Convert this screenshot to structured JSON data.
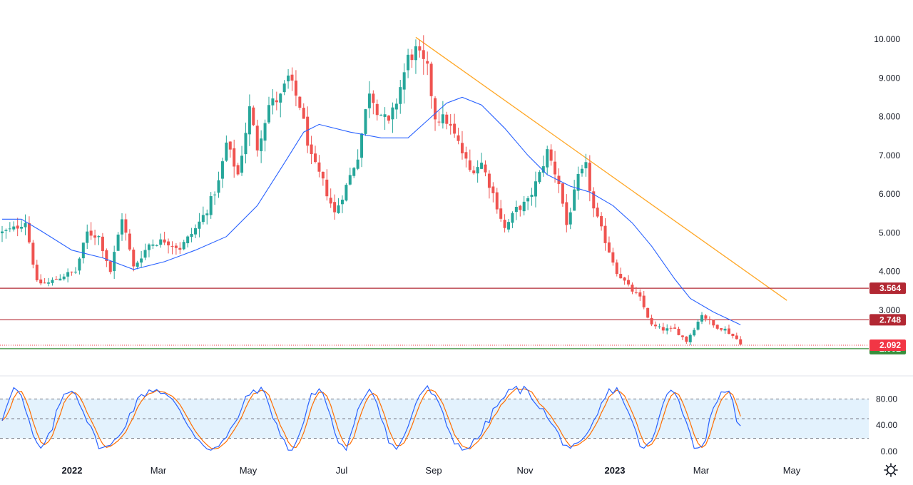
{
  "chart_data": {
    "type": "candlestick",
    "price_axis": {
      "range": [
        2.0,
        10.0
      ],
      "ticks": [
        "2.000",
        "3.000",
        "4.000",
        "5.000",
        "6.000",
        "7.000",
        "8.000",
        "9.000",
        "10.000"
      ]
    },
    "time_axis": {
      "labels": [
        {
          "text": "2022",
          "bold": true
        },
        {
          "text": "Mar",
          "bold": false
        },
        {
          "text": "May",
          "bold": false
        },
        {
          "text": "Jul",
          "bold": false
        },
        {
          "text": "Sep",
          "bold": false
        },
        {
          "text": "Nov",
          "bold": false
        },
        {
          "text": "2023",
          "bold": true
        },
        {
          "text": "Mar",
          "bold": false
        },
        {
          "text": "May",
          "bold": false
        }
      ]
    },
    "price_path": [
      [
        0,
        5.0
      ],
      [
        3,
        5.1
      ],
      [
        6,
        5.3
      ],
      [
        9,
        3.7
      ],
      [
        12,
        3.7
      ],
      [
        16,
        3.9
      ],
      [
        19,
        4.0
      ],
      [
        22,
        5.0
      ],
      [
        25,
        4.9
      ],
      [
        28,
        4.0
      ],
      [
        31,
        5.4
      ],
      [
        34,
        4.1
      ],
      [
        38,
        4.7
      ],
      [
        42,
        4.8
      ],
      [
        46,
        4.6
      ],
      [
        50,
        5.1
      ],
      [
        53,
        5.6
      ],
      [
        56,
        6.3
      ],
      [
        58,
        7.3
      ],
      [
        61,
        6.5
      ],
      [
        64,
        8.2
      ],
      [
        66,
        7.2
      ],
      [
        69,
        8.3
      ],
      [
        72,
        8.5
      ],
      [
        74,
        9.0
      ],
      [
        77,
        8.3
      ],
      [
        80,
        6.9
      ],
      [
        83,
        6.3
      ],
      [
        86,
        5.5
      ],
      [
        89,
        6.2
      ],
      [
        92,
        7.0
      ],
      [
        95,
        8.7
      ],
      [
        97,
        8.2
      ],
      [
        100,
        7.8
      ],
      [
        102,
        8.4
      ],
      [
        105,
        9.5
      ],
      [
        107,
        9.7
      ],
      [
        110,
        9.2
      ],
      [
        112,
        8.0
      ],
      [
        115,
        7.9
      ],
      [
        118,
        7.3
      ],
      [
        121,
        6.6
      ],
      [
        124,
        6.8
      ],
      [
        127,
        6.0
      ],
      [
        130,
        5.1
      ],
      [
        133,
        5.6
      ],
      [
        136,
        5.8
      ],
      [
        139,
        6.5
      ],
      [
        141,
        7.1
      ],
      [
        144,
        6.3
      ],
      [
        146,
        5.2
      ],
      [
        149,
        6.4
      ],
      [
        151,
        6.7
      ],
      [
        153,
        5.6
      ],
      [
        156,
        4.8
      ],
      [
        159,
        4.0
      ],
      [
        162,
        3.6
      ],
      [
        165,
        3.3
      ],
      [
        168,
        2.6
      ],
      [
        171,
        2.5
      ],
      [
        174,
        2.5
      ],
      [
        177,
        2.2
      ],
      [
        180,
        2.7
      ],
      [
        181,
        2.9
      ],
      [
        184,
        2.6
      ],
      [
        187,
        2.5
      ],
      [
        190,
        2.25
      ],
      [
        191,
        2.15
      ]
    ],
    "ma_path": [
      [
        0,
        5.35
      ],
      [
        5,
        5.35
      ],
      [
        10,
        5.05
      ],
      [
        18,
        4.55
      ],
      [
        26,
        4.35
      ],
      [
        34,
        4.05
      ],
      [
        42,
        4.25
      ],
      [
        50,
        4.55
      ],
      [
        58,
        4.9
      ],
      [
        66,
        5.7
      ],
      [
        73,
        6.8
      ],
      [
        78,
        7.6
      ],
      [
        82,
        7.8
      ],
      [
        90,
        7.6
      ],
      [
        98,
        7.45
      ],
      [
        105,
        7.45
      ],
      [
        110,
        7.9
      ],
      [
        115,
        8.35
      ],
      [
        119,
        8.5
      ],
      [
        124,
        8.3
      ],
      [
        130,
        7.7
      ],
      [
        136,
        7.0
      ],
      [
        141,
        6.5
      ],
      [
        147,
        6.2
      ],
      [
        152,
        6.05
      ],
      [
        158,
        5.7
      ],
      [
        163,
        5.25
      ],
      [
        168,
        4.65
      ],
      [
        174,
        3.8
      ],
      [
        178,
        3.3
      ],
      [
        184,
        2.95
      ],
      [
        191,
        2.62
      ]
    ],
    "trendline": {
      "from": [
        107,
        10.05
      ],
      "to": [
        203,
        3.25
      ]
    },
    "levels": [
      {
        "name": "resistance",
        "value": 3.564,
        "label": "3.564",
        "color": "#b22833"
      },
      {
        "name": "resistance",
        "value": 2.748,
        "label": "2.748",
        "color": "#b22833"
      },
      {
        "name": "support",
        "value": 2.002,
        "label": "2.002",
        "color": "#388e3c"
      }
    ],
    "last_price": {
      "value": 2.092,
      "label": "2.092",
      "color": "#f23645"
    },
    "colors": {
      "up": "#26a69a",
      "down": "#ef5350",
      "ma": "#2962ff",
      "trendline": "#ffa726",
      "stoch_k": "#2962ff",
      "stoch_d": "#ff6d00",
      "band": "#e3f2fd"
    },
    "stochastic": {
      "range": [
        0,
        100
      ],
      "ticks": [
        "0.00",
        "40.00",
        "80.00"
      ],
      "band": [
        20,
        80
      ],
      "dashed_levels": [
        20,
        50,
        80
      ]
    }
  },
  "toolbar": {
    "settings_icon": "gear-icon"
  }
}
